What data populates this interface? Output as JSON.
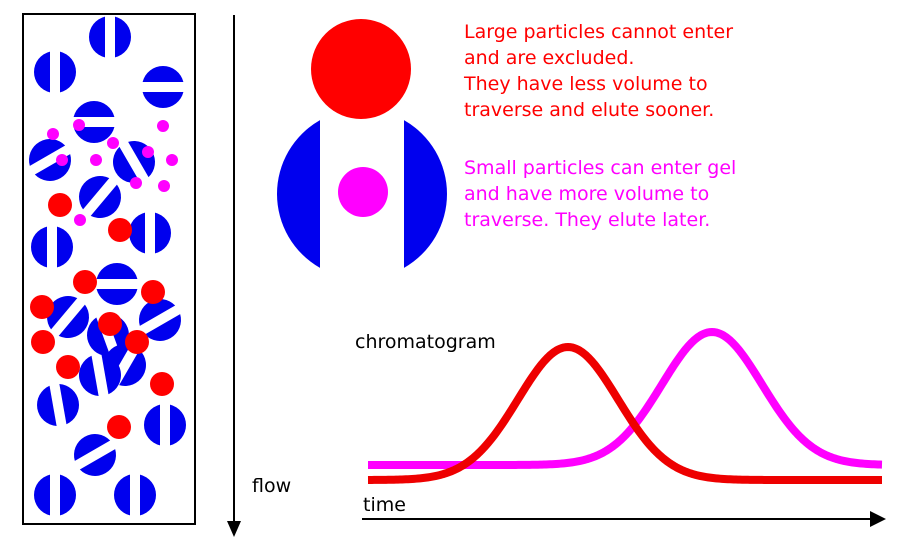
{
  "colors": {
    "large_particle": "#ff0000",
    "small_particle": "#ff00ff",
    "gel_bead": "#0000ee",
    "outline": "#000000",
    "background": "#ffffff"
  },
  "explanation": {
    "large_lines": [
      "Large particles cannot enter",
      "and are excluded.",
      "They have less volume to",
      "traverse and elute sooner."
    ],
    "small_lines": [
      "Small particles can enter gel",
      "and have more volume to",
      "traverse.  They elute later."
    ]
  },
  "labels": {
    "flow": "flow",
    "chromatogram": "chromatogram",
    "time": "time"
  }
}
